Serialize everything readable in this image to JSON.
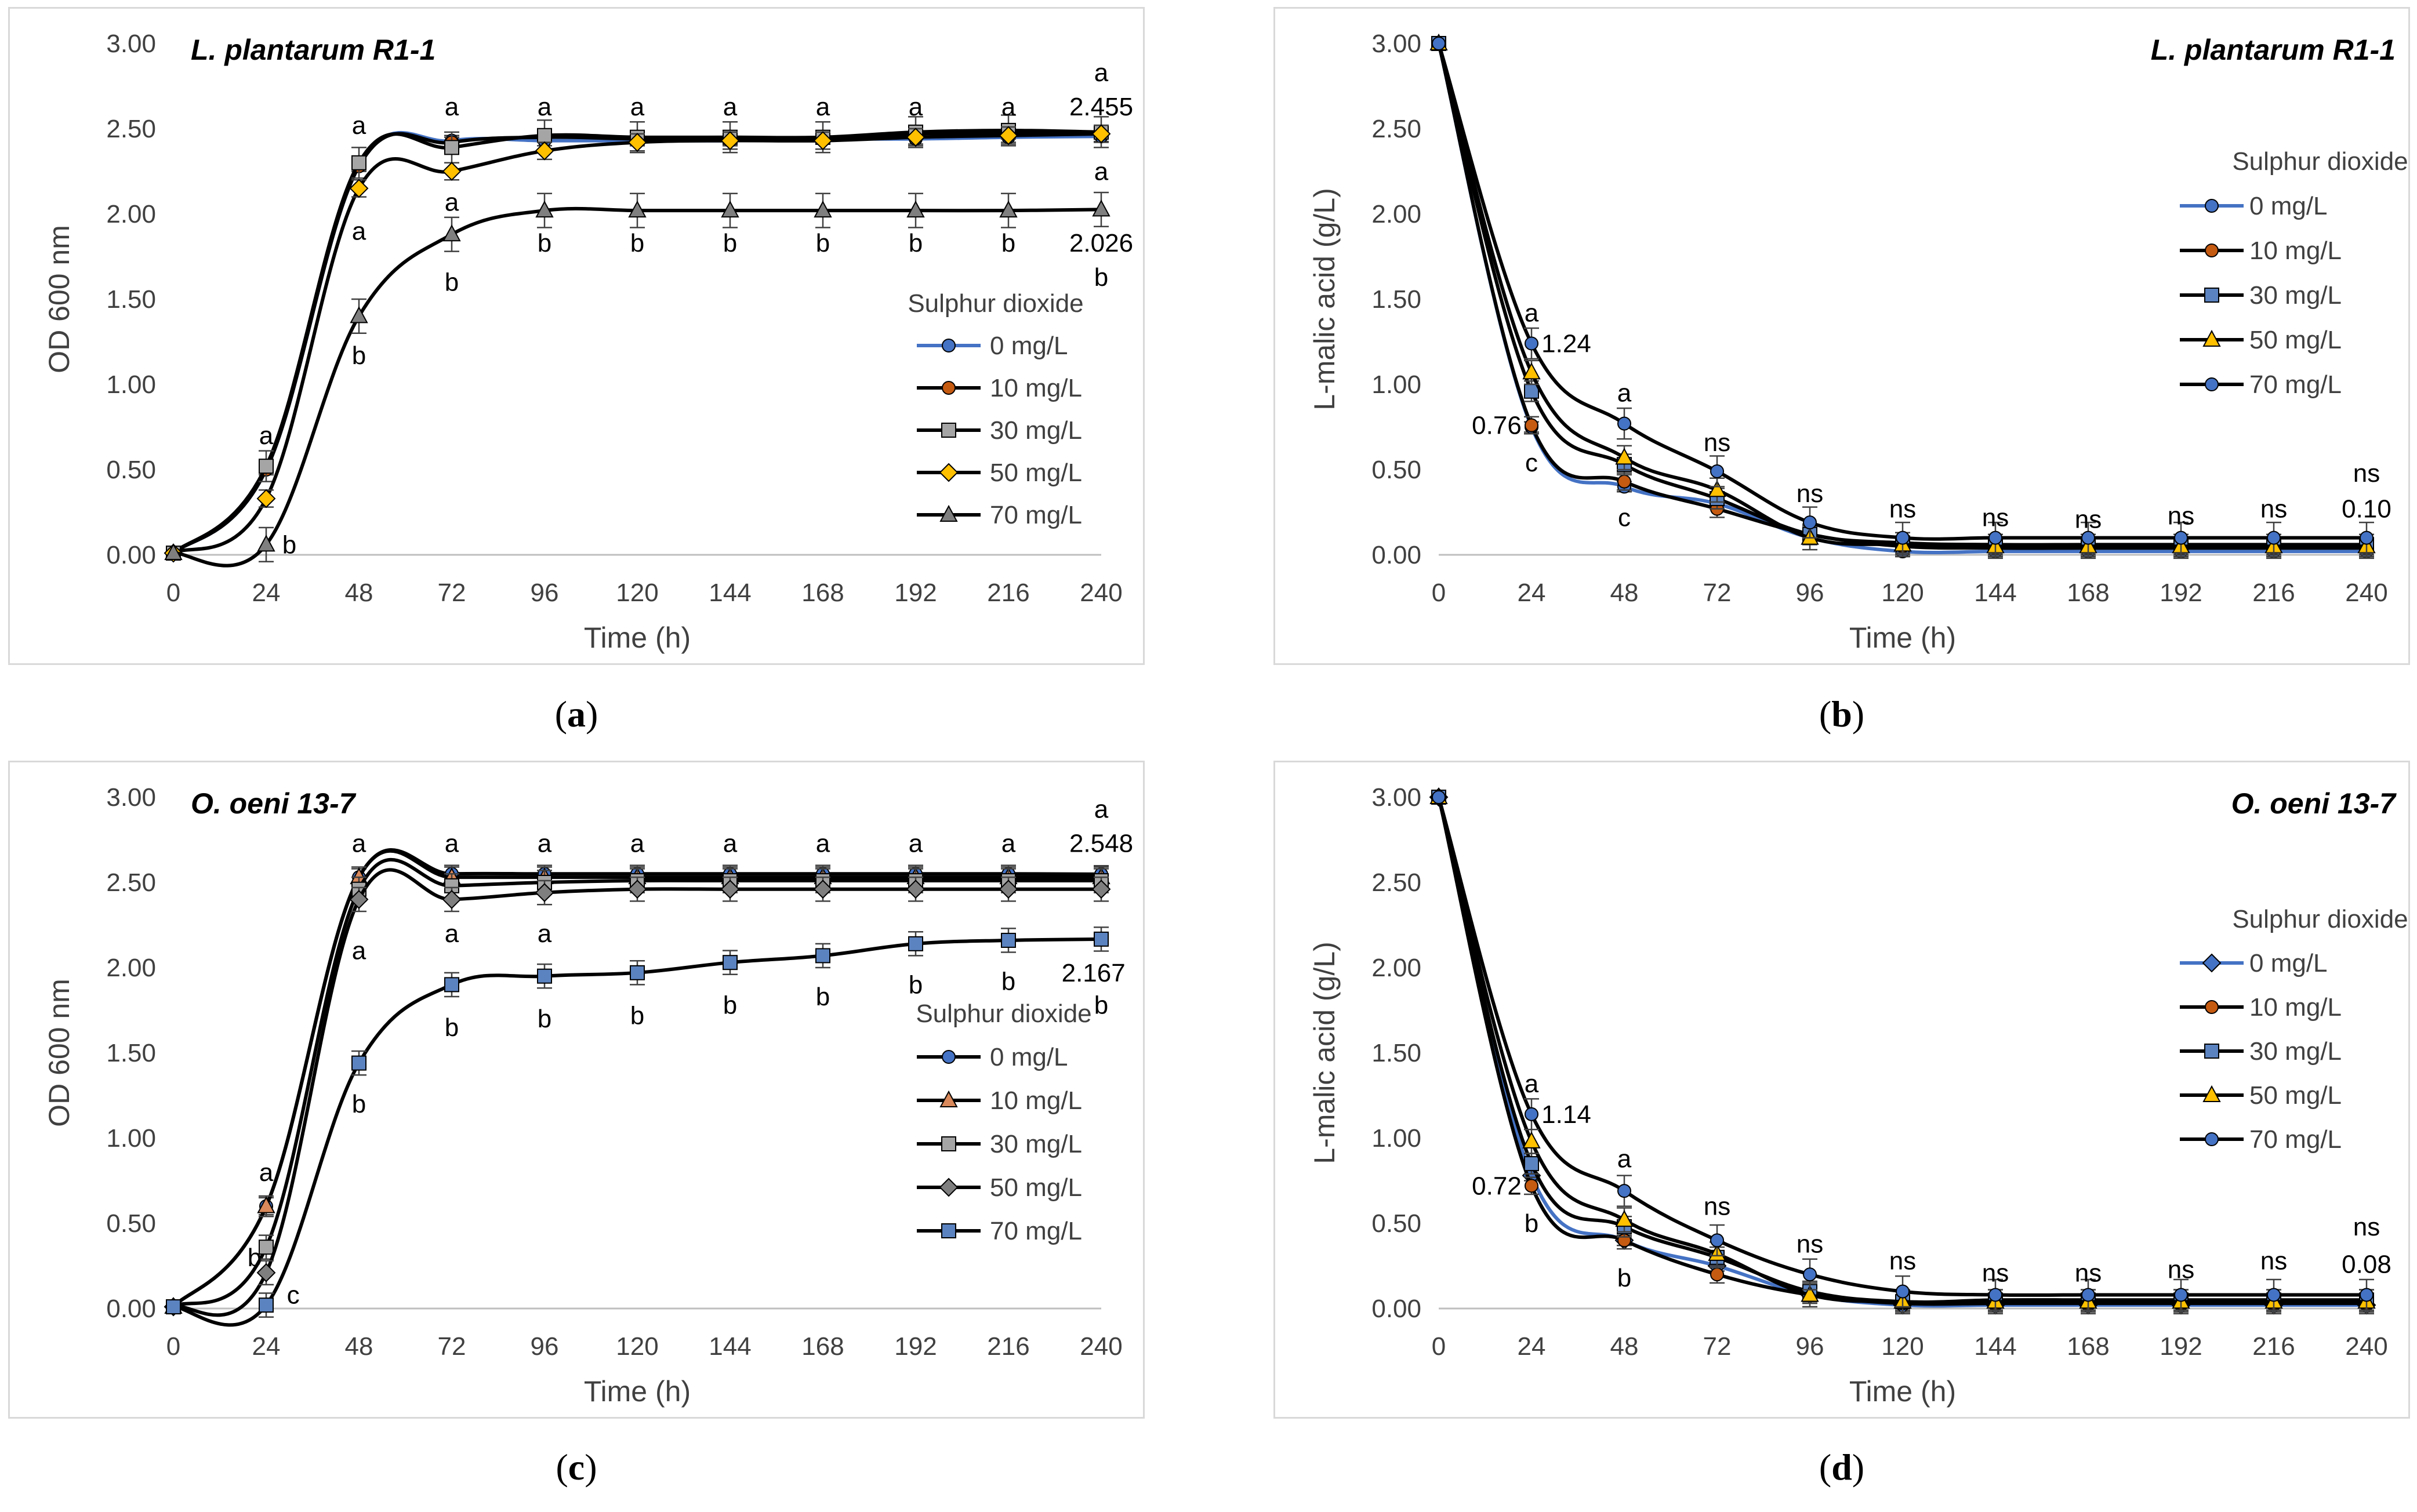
{
  "captions": [
    {
      "open": "(",
      "letter": "a",
      "close": ")"
    },
    {
      "open": "(",
      "letter": "b",
      "close": ")"
    },
    {
      "open": "(",
      "letter": "c",
      "close": ")"
    },
    {
      "open": "(",
      "letter": "d",
      "close": ")"
    }
  ],
  "colors": {
    "black": "#000000",
    "blue": "#4472c4",
    "orange": "#c55a11",
    "gray": "#a5a5a5",
    "gold": "#ffc000",
    "gray_dark": "#7f7f7f",
    "steel": "#5b83c0",
    "tan": "#d9895b"
  },
  "chart_data": [
    {
      "type": "line",
      "title": "L. plantarum R1-1",
      "xlabel": "Time (h)",
      "ylabel": "OD 600 nm",
      "ylim": [
        0,
        3
      ],
      "yticks": [
        "0.00",
        "0.50",
        "1.00",
        "1.50",
        "2.00",
        "2.50",
        "3.00"
      ],
      "x": [
        0,
        24,
        48,
        72,
        96,
        120,
        144,
        168,
        192,
        216,
        240
      ],
      "legend": {
        "title": "Sulphur dioxide",
        "position": "right"
      },
      "series": [
        {
          "name": "0 mg/L",
          "marker": "circle",
          "line": "blue",
          "fill": "blue",
          "err": 0.03,
          "values": [
            0.01,
            0.5,
            2.28,
            2.43,
            2.43,
            2.43,
            2.43,
            2.44,
            2.44,
            2.45,
            2.455
          ]
        },
        {
          "name": "10 mg/L",
          "marker": "circle",
          "line": "black",
          "fill": "orange",
          "err": 0.03,
          "values": [
            0.01,
            0.5,
            2.28,
            2.42,
            2.45,
            2.44,
            2.44,
            2.44,
            2.47,
            2.47,
            2.47
          ]
        },
        {
          "name": "30 mg/L",
          "marker": "square",
          "line": "black",
          "fill": "gray",
          "err": 0.09,
          "values": [
            0.01,
            0.52,
            2.3,
            2.39,
            2.46,
            2.45,
            2.45,
            2.45,
            2.48,
            2.49,
            2.48
          ]
        },
        {
          "name": "50 mg/L",
          "marker": "diamond",
          "line": "black",
          "fill": "gold",
          "err": 0.05,
          "values": [
            0.01,
            0.33,
            2.15,
            2.25,
            2.37,
            2.42,
            2.43,
            2.43,
            2.45,
            2.46,
            2.47
          ]
        },
        {
          "name": "70 mg/L",
          "marker": "triangle",
          "line": "black",
          "fill": "gray_dark",
          "err": 0.1,
          "values": [
            0.01,
            0.06,
            1.4,
            1.88,
            2.02,
            2.02,
            2.02,
            2.02,
            2.02,
            2.02,
            2.026
          ]
        }
      ],
      "annotations": [
        {
          "text": "a",
          "x": 24,
          "y": 0.7
        },
        {
          "text": "b",
          "x": 30,
          "y": 0.06
        },
        {
          "text": "a",
          "x": 48,
          "y": 2.52
        },
        {
          "text": "a",
          "x": 48,
          "y": 1.9
        },
        {
          "text": "b",
          "x": 48,
          "y": 1.17
        },
        {
          "text": "a",
          "x": 72,
          "y": 2.63
        },
        {
          "text": "a",
          "x": 72,
          "y": 2.07
        },
        {
          "text": "b",
          "x": 72,
          "y": 1.6
        },
        {
          "text": "a",
          "x": 96,
          "y": 2.63
        },
        {
          "text": "b",
          "x": 96,
          "y": 1.83
        },
        {
          "text": "a",
          "x": 120,
          "y": 2.63
        },
        {
          "text": "b",
          "x": 120,
          "y": 1.83
        },
        {
          "text": "a",
          "x": 144,
          "y": 2.63
        },
        {
          "text": "b",
          "x": 144,
          "y": 1.83
        },
        {
          "text": "a",
          "x": 168,
          "y": 2.63
        },
        {
          "text": "b",
          "x": 168,
          "y": 1.83
        },
        {
          "text": "a",
          "x": 192,
          "y": 2.63
        },
        {
          "text": "b",
          "x": 192,
          "y": 1.83
        },
        {
          "text": "a",
          "x": 216,
          "y": 2.63
        },
        {
          "text": "b",
          "x": 216,
          "y": 1.83
        },
        {
          "text": "a",
          "x": 240,
          "y": 2.83
        },
        {
          "text": "2.455",
          "x": 240,
          "y": 2.63
        },
        {
          "text": "a",
          "x": 240,
          "y": 2.25
        },
        {
          "text": "2.026",
          "x": 240,
          "y": 1.83
        },
        {
          "text": "b",
          "x": 240,
          "y": 1.63
        }
      ]
    },
    {
      "type": "line",
      "title": "L. plantarum R1-1",
      "xlabel": "Time (h)",
      "ylabel": "L-malic acid (g/L)",
      "ylim": [
        0,
        3
      ],
      "yticks": [
        "0.00",
        "0.50",
        "1.00",
        "1.50",
        "2.00",
        "2.50",
        "3.00"
      ],
      "x": [
        0,
        24,
        48,
        72,
        96,
        120,
        144,
        168,
        192,
        216,
        240
      ],
      "legend": {
        "title": "Sulphur dioxide",
        "position": "right"
      },
      "series": [
        {
          "name": "0 mg/L",
          "marker": "circle",
          "line": "blue",
          "fill": "blue",
          "err": 0.03,
          "values": [
            3.0,
            0.75,
            0.4,
            0.3,
            0.1,
            0.02,
            0.02,
            0.02,
            0.02,
            0.02,
            0.02
          ]
        },
        {
          "name": "10 mg/L",
          "marker": "circle",
          "line": "black",
          "fill": "orange",
          "err": 0.05,
          "values": [
            3.0,
            0.76,
            0.43,
            0.27,
            0.12,
            0.05,
            0.04,
            0.04,
            0.04,
            0.04,
            0.04
          ]
        },
        {
          "name": "30 mg/L",
          "marker": "square",
          "line": "black",
          "fill": "steel",
          "err": 0.06,
          "values": [
            3.0,
            0.96,
            0.53,
            0.33,
            0.12,
            0.07,
            0.06,
            0.06,
            0.06,
            0.06,
            0.06
          ]
        },
        {
          "name": "50 mg/L",
          "marker": "triangle",
          "line": "black",
          "fill": "gold",
          "err": 0.07,
          "values": [
            3.0,
            1.07,
            0.57,
            0.38,
            0.1,
            0.06,
            0.05,
            0.05,
            0.05,
            0.05,
            0.05
          ]
        },
        {
          "name": "70 mg/L",
          "marker": "circle",
          "line": "black",
          "fill": "blue",
          "err": 0.09,
          "values": [
            3.0,
            1.24,
            0.77,
            0.49,
            0.19,
            0.1,
            0.1,
            0.1,
            0.1,
            0.1,
            0.1
          ]
        }
      ],
      "annotations": [
        {
          "text": "a",
          "x": 24,
          "y": 1.42
        },
        {
          "text": "1.24",
          "x": 33,
          "y": 1.24
        },
        {
          "text": "0.76",
          "x": 15,
          "y": 0.76
        },
        {
          "text": "c",
          "x": 24,
          "y": 0.54
        },
        {
          "text": "a",
          "x": 48,
          "y": 0.95
        },
        {
          "text": "c",
          "x": 48,
          "y": 0.22
        },
        {
          "text": "ns",
          "x": 72,
          "y": 0.66
        },
        {
          "text": "ns",
          "x": 96,
          "y": 0.36
        },
        {
          "text": "ns",
          "x": 120,
          "y": 0.27
        },
        {
          "text": "ns",
          "x": 144,
          "y": 0.22
        },
        {
          "text": "ns",
          "x": 168,
          "y": 0.21
        },
        {
          "text": "ns",
          "x": 192,
          "y": 0.23
        },
        {
          "text": "ns",
          "x": 216,
          "y": 0.27
        },
        {
          "text": "ns",
          "x": 240,
          "y": 0.48
        },
        {
          "text": "0.10",
          "x": 240,
          "y": 0.27
        }
      ]
    },
    {
      "type": "line",
      "title": "O. oeni 13-7",
      "xlabel": "Time (h)",
      "ylabel": "OD 600 nm",
      "ylim": [
        0,
        3
      ],
      "yticks": [
        "0.00",
        "0.50",
        "1.00",
        "1.50",
        "2.00",
        "2.50",
        "3.00"
      ],
      "x": [
        0,
        24,
        48,
        72,
        96,
        120,
        144,
        168,
        192,
        216,
        240
      ],
      "legend": {
        "title": "Sulphur dioxide",
        "position": "right"
      },
      "series": [
        {
          "name": "0 mg/L",
          "marker": "circle",
          "line": "black",
          "fill": "blue",
          "err": 0.05,
          "values": [
            0.01,
            0.6,
            2.53,
            2.55,
            2.55,
            2.55,
            2.55,
            2.55,
            2.55,
            2.55,
            2.548
          ]
        },
        {
          "name": "10 mg/L",
          "marker": "triangle",
          "line": "black",
          "fill": "tan",
          "err": 0.06,
          "values": [
            0.01,
            0.6,
            2.53,
            2.53,
            2.53,
            2.53,
            2.53,
            2.53,
            2.53,
            2.53,
            2.53
          ]
        },
        {
          "name": "30 mg/L",
          "marker": "square",
          "line": "black",
          "fill": "gray",
          "err": 0.07,
          "values": [
            0.01,
            0.36,
            2.46,
            2.48,
            2.5,
            2.51,
            2.51,
            2.51,
            2.51,
            2.51,
            2.51
          ]
        },
        {
          "name": "50 mg/L",
          "marker": "diamond",
          "line": "black",
          "fill": "gray_dark",
          "err": 0.07,
          "values": [
            0.01,
            0.21,
            2.4,
            2.4,
            2.44,
            2.46,
            2.46,
            2.46,
            2.46,
            2.46,
            2.46
          ]
        },
        {
          "name": "70 mg/L",
          "marker": "square",
          "line": "black",
          "fill": "steel",
          "err": 0.07,
          "values": [
            0.01,
            0.02,
            1.44,
            1.9,
            1.95,
            1.97,
            2.03,
            2.07,
            2.14,
            2.16,
            2.167
          ]
        }
      ],
      "annotations": [
        {
          "text": "a",
          "x": 24,
          "y": 0.8
        },
        {
          "text": "b",
          "x": 21,
          "y": 0.3
        },
        {
          "text": "c",
          "x": 31,
          "y": 0.08
        },
        {
          "text": "a",
          "x": 48,
          "y": 2.73
        },
        {
          "text": "a",
          "x": 48,
          "y": 2.1
        },
        {
          "text": "b",
          "x": 48,
          "y": 1.2
        },
        {
          "text": "a",
          "x": 72,
          "y": 2.73
        },
        {
          "text": "a",
          "x": 72,
          "y": 2.2
        },
        {
          "text": "b",
          "x": 72,
          "y": 1.65
        },
        {
          "text": "a",
          "x": 96,
          "y": 2.73
        },
        {
          "text": "a",
          "x": 96,
          "y": 2.2
        },
        {
          "text": "b",
          "x": 96,
          "y": 1.7
        },
        {
          "text": "a",
          "x": 120,
          "y": 2.73
        },
        {
          "text": "b",
          "x": 120,
          "y": 1.72
        },
        {
          "text": "a",
          "x": 144,
          "y": 2.73
        },
        {
          "text": "b",
          "x": 144,
          "y": 1.78
        },
        {
          "text": "a",
          "x": 168,
          "y": 2.73
        },
        {
          "text": "b",
          "x": 168,
          "y": 1.83
        },
        {
          "text": "a",
          "x": 192,
          "y": 2.73
        },
        {
          "text": "b",
          "x": 192,
          "y": 1.9
        },
        {
          "text": "a",
          "x": 216,
          "y": 2.73
        },
        {
          "text": "b",
          "x": 216,
          "y": 1.92
        },
        {
          "text": "a",
          "x": 240,
          "y": 2.93
        },
        {
          "text": "2.548",
          "x": 240,
          "y": 2.73
        },
        {
          "text": "2.167",
          "x": 238,
          "y": 1.97
        },
        {
          "text": "b",
          "x": 240,
          "y": 1.78
        }
      ]
    },
    {
      "type": "line",
      "title": "O. oeni 13-7",
      "xlabel": "Time (h)",
      "ylabel": "L-malic acid (g/L)",
      "ylim": [
        0,
        3
      ],
      "yticks": [
        "0.00",
        "0.50",
        "1.00",
        "1.50",
        "2.00",
        "2.50",
        "3.00"
      ],
      "x": [
        0,
        24,
        48,
        72,
        96,
        120,
        144,
        168,
        192,
        216,
        240
      ],
      "legend": {
        "title": "Sulphur dioxide",
        "position": "right"
      },
      "series": [
        {
          "name": "0 mg/L",
          "marker": "diamond",
          "line": "blue",
          "fill": "blue",
          "err": 0.03,
          "values": [
            3.0,
            0.78,
            0.4,
            0.25,
            0.08,
            0.02,
            0.02,
            0.02,
            0.02,
            0.02,
            0.02
          ]
        },
        {
          "name": "10 mg/L",
          "marker": "circle",
          "line": "black",
          "fill": "orange",
          "err": 0.05,
          "values": [
            3.0,
            0.72,
            0.4,
            0.2,
            0.08,
            0.03,
            0.03,
            0.03,
            0.03,
            0.03,
            0.03
          ]
        },
        {
          "name": "30 mg/L",
          "marker": "square",
          "line": "black",
          "fill": "steel",
          "err": 0.06,
          "values": [
            3.0,
            0.85,
            0.48,
            0.3,
            0.1,
            0.04,
            0.05,
            0.05,
            0.05,
            0.05,
            0.05
          ]
        },
        {
          "name": "50 mg/L",
          "marker": "triangle",
          "line": "black",
          "fill": "gold",
          "err": 0.07,
          "values": [
            3.0,
            0.98,
            0.52,
            0.32,
            0.08,
            0.04,
            0.04,
            0.04,
            0.04,
            0.04,
            0.04
          ]
        },
        {
          "name": "70 mg/L",
          "marker": "circle",
          "line": "black",
          "fill": "blue",
          "err": 0.09,
          "values": [
            3.0,
            1.14,
            0.69,
            0.4,
            0.2,
            0.1,
            0.08,
            0.08,
            0.08,
            0.08,
            0.08
          ]
        }
      ],
      "annotations": [
        {
          "text": "a",
          "x": 24,
          "y": 1.32
        },
        {
          "text": "1.14",
          "x": 33,
          "y": 1.14
        },
        {
          "text": "0.72",
          "x": 15,
          "y": 0.72
        },
        {
          "text": "b",
          "x": 24,
          "y": 0.5
        },
        {
          "text": "a",
          "x": 48,
          "y": 0.88
        },
        {
          "text": "b",
          "x": 48,
          "y": 0.18
        },
        {
          "text": "ns",
          "x": 72,
          "y": 0.6
        },
        {
          "text": "ns",
          "x": 96,
          "y": 0.38
        },
        {
          "text": "ns",
          "x": 120,
          "y": 0.28
        },
        {
          "text": "ns",
          "x": 144,
          "y": 0.21
        },
        {
          "text": "ns",
          "x": 168,
          "y": 0.21
        },
        {
          "text": "ns",
          "x": 192,
          "y": 0.23
        },
        {
          "text": "ns",
          "x": 216,
          "y": 0.28
        },
        {
          "text": "ns",
          "x": 240,
          "y": 0.48
        },
        {
          "text": "0.08",
          "x": 240,
          "y": 0.26
        }
      ]
    }
  ]
}
